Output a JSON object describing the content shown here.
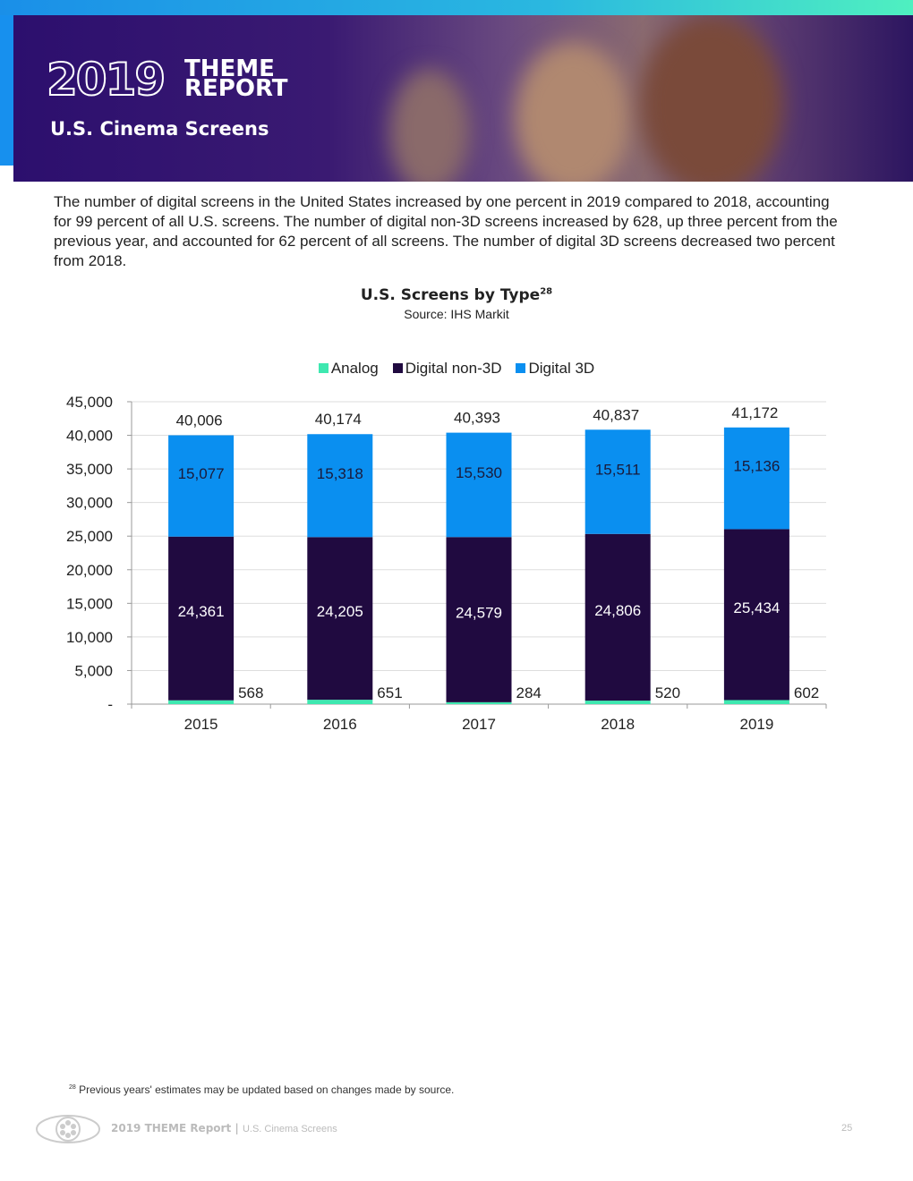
{
  "header": {
    "logo_year": "2019",
    "logo_line1": "THEME",
    "logo_line2": "REPORT",
    "subtitle": "U.S. Cinema Screens"
  },
  "intro": "The number of digital screens in the United States increased by one percent in 2019 compared to 2018, accounting for 99 percent of all U.S. screens. The number of digital non-3D screens increased by 628, up three percent from the previous year, and accounted for 62 percent of all screens. The number of digital 3D screens decreased two percent from 2018.",
  "chart_data": {
    "type": "bar",
    "stacked": true,
    "title": "U.S. Screens by Type",
    "title_sup": "28",
    "source": "Source: IHS Markit",
    "categories": [
      "2015",
      "2016",
      "2017",
      "2018",
      "2019"
    ],
    "series": [
      {
        "name": "Analog",
        "color": "#3ee8b0",
        "values": [
          568,
          651,
          284,
          520,
          602
        ],
        "labels": [
          "568",
          "651",
          "284",
          "520",
          "602"
        ]
      },
      {
        "name": "Digital non-3D",
        "color": "#200a40",
        "values": [
          24361,
          24205,
          24579,
          24806,
          25434
        ],
        "labels": [
          "24,361",
          "24,205",
          "24,579",
          "24,806",
          "25,434"
        ]
      },
      {
        "name": "Digital 3D",
        "color": "#0a8ff0",
        "values": [
          15077,
          15318,
          15530,
          15511,
          15136
        ],
        "labels": [
          "15,077",
          "15,318",
          "15,530",
          "15,511",
          "15,136"
        ]
      }
    ],
    "totals": [
      "40,006",
      "40,174",
      "40,393",
      "40,837",
      "41,172"
    ],
    "ylim": [
      0,
      45000
    ],
    "yticks": [
      "-",
      "5,000",
      "10,000",
      "15,000",
      "20,000",
      "25,000",
      "30,000",
      "35,000",
      "40,000",
      "45,000"
    ],
    "grid": true,
    "legend": "top"
  },
  "footnote": {
    "num": "28",
    "text": " Previous years' estimates may be updated based on changes made by source."
  },
  "footer": {
    "brand": "2019 THEME Report",
    "sep": " | ",
    "section": "U.S. Cinema Screens",
    "page": "25"
  }
}
